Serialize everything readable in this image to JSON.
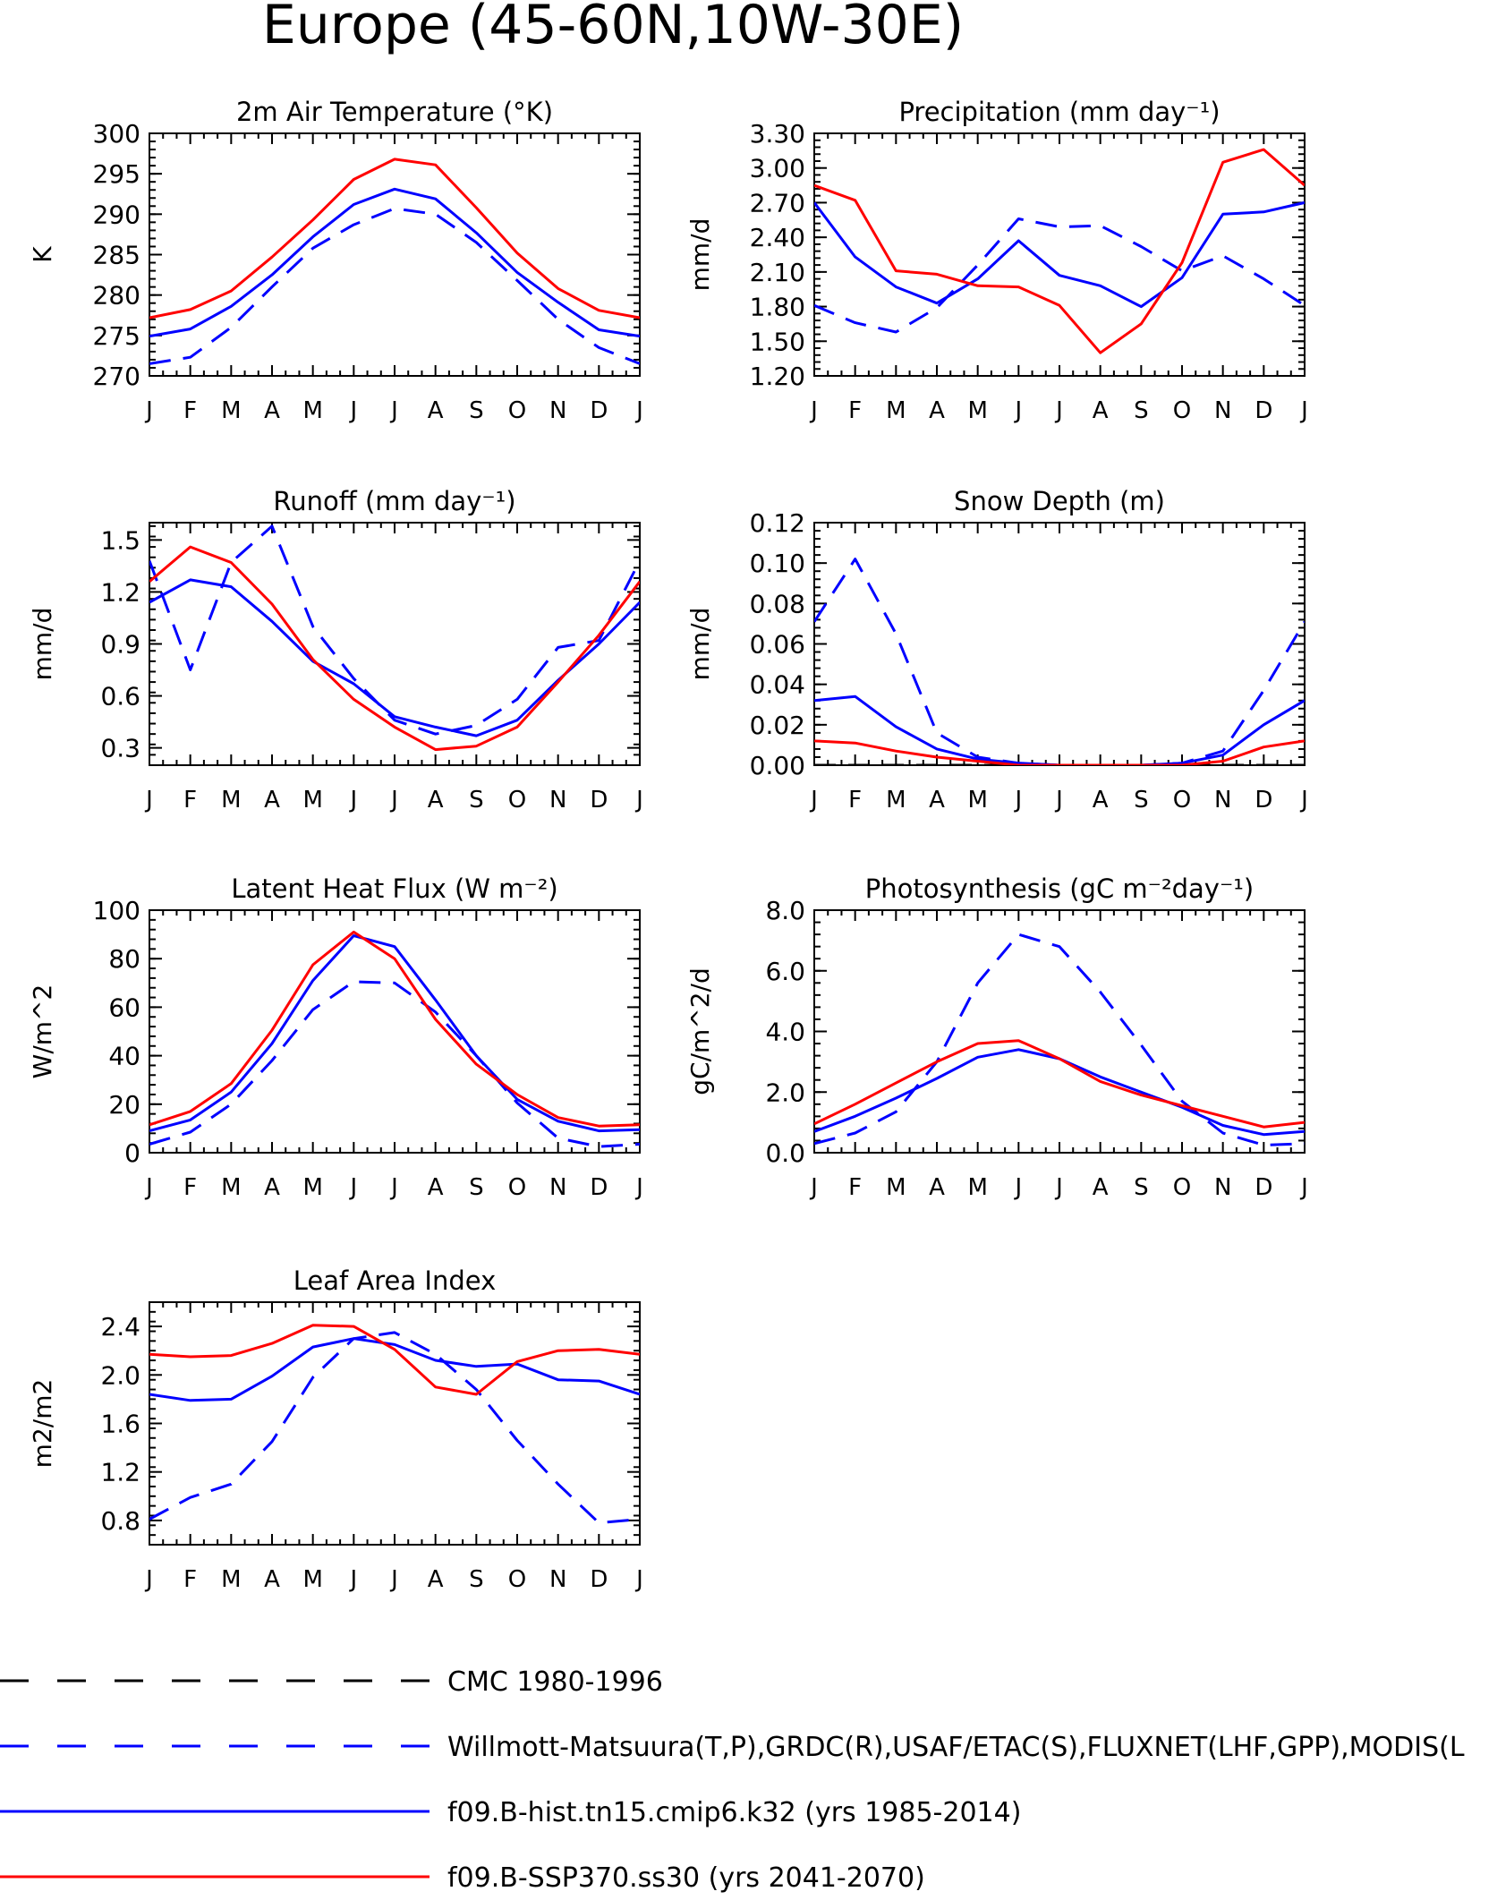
{
  "title": "Europe (45-60N,10W-30E)",
  "months": [
    "J",
    "F",
    "M",
    "A",
    "M",
    "J",
    "J",
    "A",
    "S",
    "O",
    "N",
    "D",
    "J"
  ],
  "colors": {
    "obs": "#0000ff",
    "hist": "#0000ff",
    "ssp": "#ff0000",
    "cmc": "#000000",
    "axis": "#000000"
  },
  "legend": [
    {
      "label": "CMC 1980-1996",
      "color": "#000000",
      "dash": "long"
    },
    {
      "label": "Willmott-Matsuura(T,P),GRDC(R),USAF/ETAC(S),FLUXNET(LHF,GPP),MODIS(L",
      "color": "#0000ff",
      "dash": "long"
    },
    {
      "label": "f09.B-hist.tn15.cmip6.k32 (yrs 1985-2014)",
      "color": "#0000ff",
      "dash": "solid"
    },
    {
      "label": "f09.B-SSP370.ss30 (yrs 2041-2070)",
      "color": "#ff0000",
      "dash": "solid"
    }
  ],
  "chart_data": [
    {
      "type": "line",
      "title": "2m Air Temperature (°K)",
      "ylabel": "K",
      "ylim": [
        270,
        300
      ],
      "yticks": [
        "270",
        "275",
        "280",
        "285",
        "290",
        "295",
        "300"
      ],
      "categories": [
        "J",
        "F",
        "M",
        "A",
        "M",
        "J",
        "J",
        "A",
        "S",
        "O",
        "N",
        "D",
        "J"
      ],
      "series": [
        {
          "name": "Willmott-Matsuura(T,P),GRDC(R),USAF/ETAC(S),FLUXNET(LHF,GPP),MODIS(L",
          "color": "#0000ff",
          "style": "dashed",
          "values": [
            271.5,
            272.3,
            276.0,
            281.0,
            285.8,
            288.7,
            290.7,
            290.0,
            286.5,
            281.8,
            277.0,
            273.5,
            271.5
          ]
        },
        {
          "name": "f09.B-hist.tn15.cmip6.k32 (yrs 1985-2014)",
          "color": "#0000ff",
          "style": "solid",
          "values": [
            274.9,
            275.8,
            278.6,
            282.5,
            287.2,
            291.2,
            293.1,
            291.9,
            287.7,
            282.8,
            279.1,
            275.7,
            274.9
          ]
        },
        {
          "name": "f09.B-SSP370.ss30 (yrs 2041-2070)",
          "color": "#ff0000",
          "style": "solid",
          "values": [
            277.2,
            278.2,
            280.5,
            284.7,
            289.3,
            294.3,
            296.8,
            296.1,
            290.8,
            285.2,
            280.8,
            278.1,
            277.2
          ]
        }
      ]
    },
    {
      "type": "line",
      "title": "Precipitation (mm day⁻¹)",
      "ylabel": "mm/d",
      "ylim": [
        1.2,
        3.3
      ],
      "yticks": [
        "1.20",
        "1.50",
        "1.80",
        "2.10",
        "2.40",
        "2.70",
        "3.00",
        "3.30"
      ],
      "categories": [
        "J",
        "F",
        "M",
        "A",
        "M",
        "J",
        "J",
        "A",
        "S",
        "O",
        "N",
        "D",
        "J"
      ],
      "series": [
        {
          "name": "Willmott-Matsuura(T,P),GRDC(R),USAF/ETAC(S),FLUXNET(LHF,GPP),MODIS(L",
          "color": "#0000ff",
          "style": "dashed",
          "values": [
            1.81,
            1.66,
            1.58,
            1.79,
            2.16,
            2.56,
            2.49,
            2.5,
            2.32,
            2.11,
            2.24,
            2.04,
            1.81
          ]
        },
        {
          "name": "f09.B-hist.tn15.cmip6.k32 (yrs 1985-2014)",
          "color": "#0000ff",
          "style": "solid",
          "values": [
            2.7,
            2.23,
            1.97,
            1.83,
            2.04,
            2.37,
            2.07,
            1.98,
            1.8,
            2.05,
            2.6,
            2.62,
            2.7
          ]
        },
        {
          "name": "f09.B-SSP370.ss30 (yrs 2041-2070)",
          "color": "#ff0000",
          "style": "solid",
          "values": [
            2.85,
            2.72,
            2.11,
            2.08,
            1.98,
            1.97,
            1.81,
            1.4,
            1.65,
            2.18,
            3.05,
            3.16,
            2.85
          ]
        }
      ]
    },
    {
      "type": "line",
      "title": "Runoff (mm day⁻¹)",
      "ylabel": "mm/d",
      "ylim": [
        0.2,
        1.6
      ],
      "yticks": [
        "0.3",
        "0.6",
        "0.9",
        "1.2",
        "1.5"
      ],
      "categories": [
        "J",
        "F",
        "M",
        "A",
        "M",
        "J",
        "J",
        "A",
        "S",
        "O",
        "N",
        "D",
        "J"
      ],
      "series": [
        {
          "name": "Willmott-Matsuura(T,P),GRDC(R),USAF/ETAC(S),FLUXNET(LHF,GPP),MODIS(L",
          "color": "#0000ff",
          "style": "dashed",
          "values": [
            1.38,
            0.75,
            1.37,
            1.58,
            1.0,
            0.7,
            0.46,
            0.38,
            0.43,
            0.58,
            0.88,
            0.92,
            1.38
          ]
        },
        {
          "name": "f09.B-hist.tn15.cmip6.k32 (yrs 1985-2014)",
          "color": "#0000ff",
          "style": "solid",
          "values": [
            1.14,
            1.27,
            1.23,
            1.03,
            0.8,
            0.67,
            0.48,
            0.42,
            0.37,
            0.46,
            0.69,
            0.9,
            1.14
          ]
        },
        {
          "name": "f09.B-SSP370.ss30 (yrs 2041-2070)",
          "color": "#ff0000",
          "style": "solid",
          "values": [
            1.26,
            1.46,
            1.37,
            1.13,
            0.81,
            0.58,
            0.42,
            0.29,
            0.31,
            0.42,
            0.68,
            0.95,
            1.26
          ]
        }
      ]
    },
    {
      "type": "line",
      "title": "Snow Depth (m)",
      "ylabel": "mm/d",
      "ylim": [
        0.0,
        0.12
      ],
      "yticks": [
        "0.00",
        "0.02",
        "0.04",
        "0.06",
        "0.08",
        "0.10",
        "0.12"
      ],
      "categories": [
        "J",
        "F",
        "M",
        "A",
        "M",
        "J",
        "J",
        "A",
        "S",
        "O",
        "N",
        "D",
        "J"
      ],
      "series": [
        {
          "name": "CMC 1980-1996",
          "color": "#000000",
          "style": "dashed",
          "values": [
            0.0,
            0.0,
            0.0,
            0.0,
            0.0,
            0.0,
            0.0,
            0.0,
            0.0,
            0.0,
            0.0,
            0.0,
            0.0
          ]
        },
        {
          "name": "Willmott-Matsuura(T,P),GRDC(R),USAF/ETAC(S),FLUXNET(LHF,GPP),MODIS(L",
          "color": "#0000ff",
          "style": "dashed",
          "values": [
            0.071,
            0.102,
            0.065,
            0.016,
            0.004,
            0.001,
            0.0,
            0.0,
            0.0,
            0.001,
            0.007,
            0.037,
            0.071
          ]
        },
        {
          "name": "f09.B-hist.tn15.cmip6.k32 (yrs 1985-2014)",
          "color": "#0000ff",
          "style": "solid",
          "values": [
            0.032,
            0.034,
            0.019,
            0.008,
            0.003,
            0.001,
            0.0,
            0.0,
            0.0,
            0.001,
            0.005,
            0.02,
            0.032
          ]
        },
        {
          "name": "f09.B-SSP370.ss30 (yrs 2041-2070)",
          "color": "#ff0000",
          "style": "solid",
          "values": [
            0.012,
            0.011,
            0.007,
            0.004,
            0.002,
            0.0,
            0.0,
            0.0,
            0.0,
            0.0,
            0.002,
            0.009,
            0.012
          ]
        }
      ]
    },
    {
      "type": "line",
      "title": "Latent Heat Flux (W m⁻²)",
      "ylabel": "W/m^2",
      "ylim": [
        0,
        100
      ],
      "yticks": [
        "0",
        "20",
        "40",
        "60",
        "80",
        "100"
      ],
      "categories": [
        "J",
        "F",
        "M",
        "A",
        "M",
        "J",
        "J",
        "A",
        "S",
        "O",
        "N",
        "D",
        "J"
      ],
      "series": [
        {
          "name": "Willmott-Matsuura(T,P),GRDC(R),USAF/ETAC(S),FLUXNET(LHF,GPP),MODIS(L",
          "color": "#0000ff",
          "style": "dashed",
          "values": [
            3.5,
            8.5,
            20.0,
            38.0,
            59.0,
            70.5,
            70.0,
            58.0,
            40.0,
            20.5,
            6.0,
            2.5,
            3.5
          ]
        },
        {
          "name": "f09.B-hist.tn15.cmip6.k32 (yrs 1985-2014)",
          "color": "#0000ff",
          "style": "solid",
          "values": [
            9.0,
            13.5,
            25.0,
            45.0,
            71.0,
            89.5,
            85.0,
            63.0,
            40.0,
            22.0,
            13.0,
            9.0,
            9.5
          ]
        },
        {
          "name": "f09.B-SSP370.ss30 (yrs 2041-2070)",
          "color": "#ff0000",
          "style": "solid",
          "values": [
            11.5,
            17.0,
            28.5,
            50.5,
            77.5,
            91.0,
            80.0,
            55.0,
            36.5,
            24.0,
            14.5,
            11.0,
            11.5
          ]
        }
      ]
    },
    {
      "type": "line",
      "title": "Photosynthesis (gC m⁻²day⁻¹)",
      "ylabel": "gC/m^2/d",
      "ylim": [
        0.0,
        8.0
      ],
      "yticks": [
        "0.0",
        "2.0",
        "4.0",
        "6.0",
        "8.0"
      ],
      "categories": [
        "J",
        "F",
        "M",
        "A",
        "M",
        "J",
        "J",
        "A",
        "S",
        "O",
        "N",
        "D",
        "J"
      ],
      "series": [
        {
          "name": "Willmott-Matsuura(T,P),GRDC(R),USAF/ETAC(S),FLUXNET(LHF,GPP),MODIS(L",
          "color": "#0000ff",
          "style": "dashed",
          "values": [
            0.3,
            0.65,
            1.35,
            3.0,
            5.6,
            7.2,
            6.8,
            5.3,
            3.55,
            1.7,
            0.65,
            0.25,
            0.3
          ]
        },
        {
          "name": "f09.B-hist.tn15.cmip6.k32 (yrs 1985-2014)",
          "color": "#0000ff",
          "style": "solid",
          "values": [
            0.7,
            1.2,
            1.8,
            2.45,
            3.15,
            3.4,
            3.1,
            2.5,
            2.0,
            1.5,
            0.9,
            0.6,
            0.7
          ]
        },
        {
          "name": "f09.B-SSP370.ss30 (yrs 2041-2070)",
          "color": "#ff0000",
          "style": "solid",
          "values": [
            0.95,
            1.6,
            2.3,
            3.0,
            3.6,
            3.7,
            3.1,
            2.35,
            1.9,
            1.55,
            1.2,
            0.85,
            1.0
          ]
        }
      ]
    },
    {
      "type": "line",
      "title": "Leaf Area Index",
      "ylabel": "m2/m2",
      "ylim": [
        0.6,
        2.6
      ],
      "yticks": [
        "0.8",
        "1.2",
        "1.6",
        "2.0",
        "2.4"
      ],
      "categories": [
        "J",
        "F",
        "M",
        "A",
        "M",
        "J",
        "J",
        "A",
        "S",
        "O",
        "N",
        "D",
        "J"
      ],
      "series": [
        {
          "name": "Willmott-Matsuura(T,P),GRDC(R),USAF/ETAC(S),FLUXNET(LHF,GPP),MODIS(L",
          "color": "#0000ff",
          "style": "dashed",
          "values": [
            0.81,
            0.99,
            1.1,
            1.45,
            1.98,
            2.3,
            2.35,
            2.17,
            1.88,
            1.46,
            1.1,
            0.78,
            0.81
          ]
        },
        {
          "name": "f09.B-hist.tn15.cmip6.k32 (yrs 1985-2014)",
          "color": "#0000ff",
          "style": "solid",
          "values": [
            1.84,
            1.79,
            1.8,
            1.99,
            2.23,
            2.3,
            2.25,
            2.12,
            2.07,
            2.09,
            1.96,
            1.95,
            1.84
          ]
        },
        {
          "name": "f09.B-SSP370.ss30 (yrs 2041-2070)",
          "color": "#ff0000",
          "style": "solid",
          "values": [
            2.17,
            2.15,
            2.16,
            2.26,
            2.41,
            2.4,
            2.21,
            1.9,
            1.84,
            2.11,
            2.2,
            2.21,
            2.17
          ]
        }
      ]
    }
  ]
}
